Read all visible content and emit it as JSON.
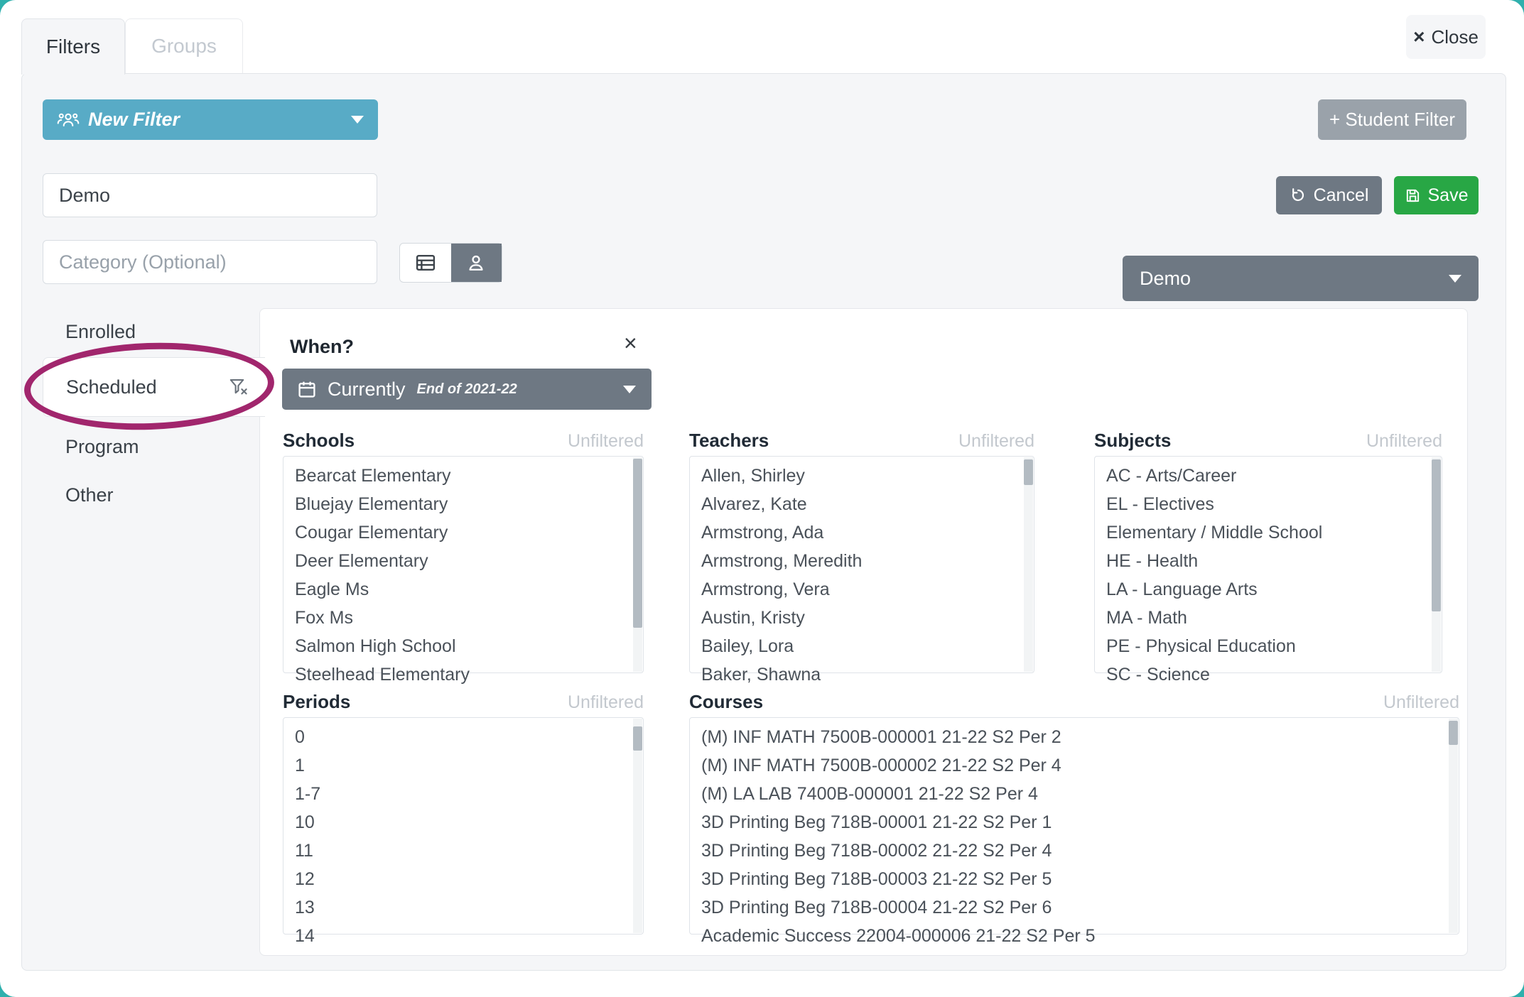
{
  "header": {
    "tabs": {
      "filters": "Filters",
      "groups": "Groups"
    },
    "close": {
      "x": "×",
      "label": "Close"
    }
  },
  "toolbar": {
    "new_filter_label": "New Filter",
    "student_filter_label": "+ Student Filter",
    "cancel_label": "Cancel",
    "save_label": "Save"
  },
  "name_input": {
    "value": "Demo"
  },
  "category_input": {
    "placeholder": "Category (Optional)"
  },
  "filter_dropdown": {
    "value": "Demo"
  },
  "sidebar": {
    "items": [
      {
        "label": "Enrolled"
      },
      {
        "label": "Scheduled",
        "active": true,
        "has_filter_clear_icon": true
      },
      {
        "label": "Program"
      },
      {
        "label": "Other"
      }
    ]
  },
  "when_panel": {
    "title": "When?",
    "close_x": "×",
    "when_select": {
      "label": "Currently",
      "detail": "End of 2021-22"
    },
    "lists": [
      {
        "name": "Schools",
        "status": "Unfiltered",
        "items": [
          "Bearcat Elementary",
          "Bluejay Elementary",
          "Cougar Elementary",
          "Deer Elementary",
          "Eagle Ms",
          "Fox Ms",
          "Salmon High School",
          "Steelhead Elementary"
        ]
      },
      {
        "name": "Teachers",
        "status": "Unfiltered",
        "items": [
          "Allen, Shirley",
          "Alvarez, Kate",
          "Armstrong, Ada",
          "Armstrong, Meredith",
          "Armstrong, Vera",
          "Austin, Kristy",
          "Bailey, Lora",
          "Baker, Shawna"
        ]
      },
      {
        "name": "Subjects",
        "status": "Unfiltered",
        "items": [
          "AC - Arts/Career",
          "EL - Electives",
          "Elementary / Middle School",
          "HE - Health",
          "LA - Language Arts",
          "MA - Math",
          "PE - Physical Education",
          "SC - Science"
        ]
      },
      {
        "name": "Periods",
        "status": "Unfiltered",
        "items": [
          "0",
          "1",
          "1-7",
          "10",
          "11",
          "12",
          "13",
          "14"
        ]
      },
      {
        "name": "Courses",
        "status": "Unfiltered",
        "items": [
          "(M) INF MATH 7500B-000001 21-22 S2 Per 2",
          "(M) INF MATH 7500B-000002 21-22 S2 Per 4",
          "(M) LA LAB 7400B-000001 21-22 S2 Per 4",
          "3D Printing Beg 718B-00001 21-22 S2 Per 1",
          "3D Printing Beg 718B-00002 21-22 S2 Per 4",
          "3D Printing Beg 718B-00003 21-22 S2 Per 5",
          "3D Printing Beg 718B-00004 21-22 S2 Per 6",
          "Academic Success 22004-000006 21-22 S2 Per 5"
        ]
      }
    ]
  },
  "colors": {
    "page_background_teal": "#2fb0ad",
    "accent_teal_button": "#58abc6",
    "slate_button": "#6e7883",
    "save_green": "#28a745",
    "student_filter_gray": "#9aa2aa",
    "annotation_magenta": "#a1266d",
    "panel_gray": "#f5f6f8"
  }
}
